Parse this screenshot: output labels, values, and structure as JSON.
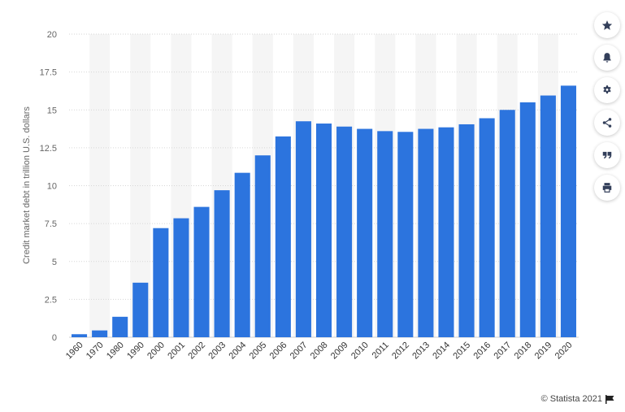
{
  "chart_data": {
    "type": "bar",
    "ylabel": "Credit market debt in trillion U.S. dollars",
    "xlabel": "",
    "categories": [
      "1960",
      "1970",
      "1980",
      "1990",
      "2000",
      "2001",
      "2002",
      "2003",
      "2004",
      "2005",
      "2006",
      "2007",
      "2008",
      "2009",
      "2010",
      "2011",
      "2012",
      "2013",
      "2014",
      "2015",
      "2016",
      "2017",
      "2018",
      "2019",
      "2020"
    ],
    "values": [
      0.2,
      0.45,
      1.35,
      3.6,
      7.2,
      7.85,
      8.6,
      9.7,
      10.85,
      12.0,
      13.25,
      14.25,
      14.1,
      13.9,
      13.75,
      13.6,
      13.55,
      13.75,
      13.85,
      14.05,
      14.45,
      15.0,
      15.5,
      15.95,
      16.6
    ],
    "yticks": [
      "0",
      "2.5",
      "5",
      "7.5",
      "10",
      "12.5",
      "15",
      "17.5",
      "20"
    ],
    "ylim": [
      0,
      20
    ],
    "bar_color": "#2c74de",
    "grid": true
  },
  "toolbar": {
    "buttons": [
      {
        "name": "star-icon"
      },
      {
        "name": "bell-icon"
      },
      {
        "name": "gear-icon"
      },
      {
        "name": "share-icon"
      },
      {
        "name": "quote-icon"
      },
      {
        "name": "print-icon"
      }
    ]
  },
  "credit": {
    "text": "© Statista 2021",
    "icon": "flag-icon"
  }
}
